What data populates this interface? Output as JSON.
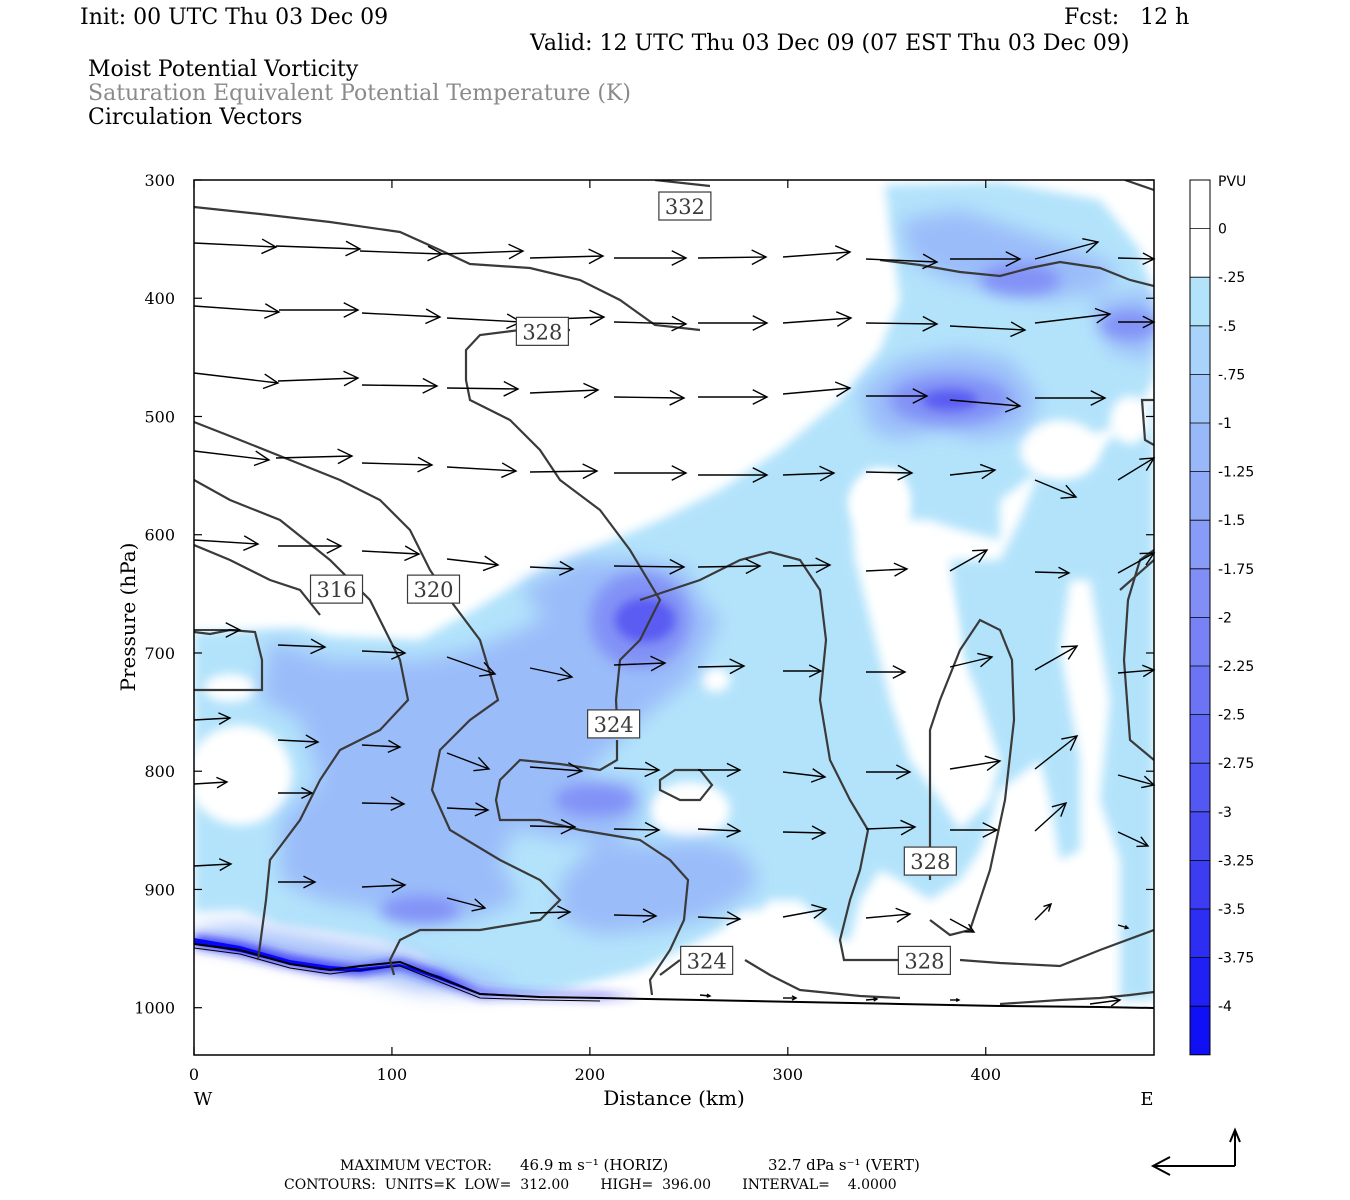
{
  "header": {
    "init": "Init: 00 UTC Thu 03 Dec 09",
    "fcst": "Fcst:   12 h",
    "valid": "Valid: 12 UTC Thu 03 Dec 09 (07 EST Thu 03 Dec 09)",
    "field1": "Moist Potential Vorticity",
    "field2": "Saturation Equivalent Potential Temperature (K)",
    "field3": "Circulation Vectors"
  },
  "footer": {
    "max_vector_label": "MAXIMUM VECTOR:",
    "max_horiz": "46.9 m s⁻¹ (HORIZ)",
    "max_vert": "32.7 dPa s⁻¹ (VERT)",
    "contours": "CONTOURS:  UNITS=K  LOW=  312.00       HIGH=  396.00       INTERVAL=    4.0000"
  },
  "colors": {
    "light_fill": "#b3e3fb",
    "contour": "#3a3a3a",
    "vector": "#000000"
  },
  "chart_data": {
    "type": "cross-section",
    "title": "Moist Potential Vorticity",
    "xlabel": "Distance (km)",
    "ylabel": "Pressure (hPa)",
    "xlim": [
      0,
      485
    ],
    "ylim": [
      1040,
      300
    ],
    "x_ticks": [
      0,
      100,
      200,
      300,
      400
    ],
    "y_ticks": [
      300,
      400,
      500,
      600,
      700,
      800,
      900,
      1000
    ],
    "x_end_labels": {
      "left": "W",
      "right": "E"
    },
    "colorbar": {
      "unit": "PVU",
      "levels": [
        "0",
        "-.25",
        "-.5",
        "-.75",
        "-1",
        "-1.25",
        "-1.5",
        "-1.75",
        "-2",
        "-2.25",
        "-2.5",
        "-2.75",
        "-3",
        "-3.25",
        "-3.5",
        "-3.75",
        "-4"
      ],
      "colors": [
        "#ffffff",
        "#ffffff",
        "#b3e3fb",
        "#a8d4fb",
        "#a0c6fa",
        "#98b8f9",
        "#90aaf8",
        "#889cf7",
        "#808ef6",
        "#7882f5",
        "#6c74f4",
        "#6066f3",
        "#5458f2",
        "#4a4af1",
        "#3c3cf2",
        "#2e2ef3",
        "#2020f4",
        "#1010f6"
      ]
    },
    "contour_labels": [
      {
        "text": "332",
        "x": 248,
        "p": 322
      },
      {
        "text": "328",
        "x": 176,
        "p": 428
      },
      {
        "text": "316",
        "x": 72,
        "p": 646
      },
      {
        "text": "320",
        "x": 121,
        "p": 646
      },
      {
        "text": "324",
        "x": 212,
        "p": 760
      },
      {
        "text": "328",
        "x": 372,
        "p": 876
      },
      {
        "text": "324",
        "x": 259,
        "p": 960
      },
      {
        "text": "328",
        "x": 369,
        "p": 960
      }
    ]
  }
}
